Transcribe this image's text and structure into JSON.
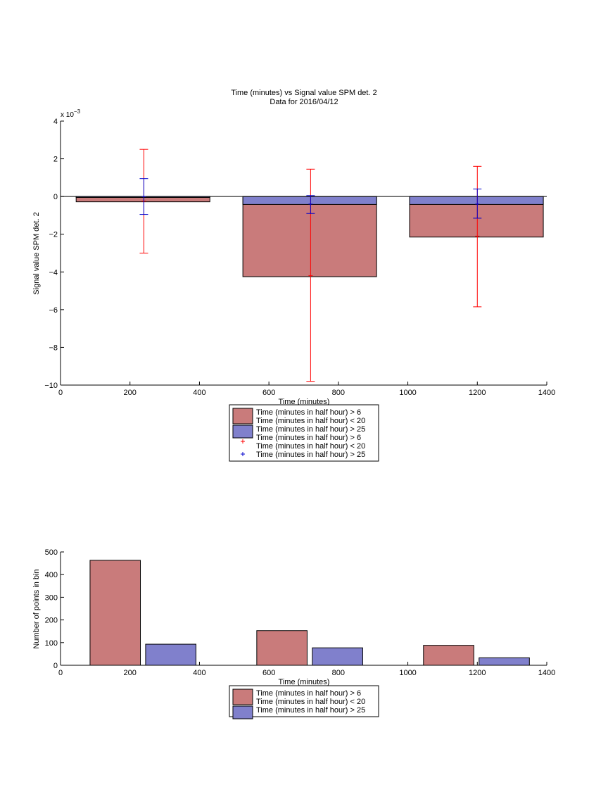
{
  "colors": {
    "bar_red": "#c97b7b",
    "bar_blue": "#8080cc",
    "err_red": "#ff0000",
    "err_blue": "#0000cc",
    "axis": "#000000"
  },
  "chart_data": [
    {
      "type": "bar",
      "title": "Time (minutes) vs Signal value SPM det. 2",
      "subtitle": "Data for 2016/04/12",
      "xlabel": "Time (minutes)",
      "ylabel": "Signal value SPM det. 2",
      "exponent_label": "x 10",
      "exponent_power": "−3",
      "xlim": [
        0,
        1400
      ],
      "ylim": [
        -10,
        4
      ],
      "xticks": [
        0,
        200,
        400,
        600,
        800,
        1000,
        1200,
        1400
      ],
      "yticks": [
        -10,
        -8,
        -6,
        -4,
        -2,
        0,
        2,
        4
      ],
      "xtick_labels": [
        "0",
        "200",
        "400",
        "600",
        "800",
        "1000",
        "1200",
        "1400"
      ],
      "ytick_labels": [
        "−10",
        "−8",
        "−6",
        "−4",
        "−2",
        "0",
        "2",
        "4"
      ],
      "bar_groups": [
        {
          "x_start": 45,
          "x_end": 430,
          "red": -0.28,
          "blue": -0.05
        },
        {
          "x_start": 525,
          "x_end": 910,
          "red": -4.25,
          "blue": -0.42
        },
        {
          "x_start": 1005,
          "x_end": 1390,
          "red": -2.15,
          "blue": -0.42
        }
      ],
      "error_bars": [
        {
          "series": "red",
          "x": 240,
          "y": -0.25,
          "low": -3.0,
          "high": 2.5
        },
        {
          "series": "blue",
          "x": 240,
          "y": 0.0,
          "low": -0.95,
          "high": 0.95
        },
        {
          "series": "red",
          "x": 720,
          "y": -4.2,
          "low": -9.8,
          "high": 1.45
        },
        {
          "series": "blue",
          "x": 720,
          "y": -0.4,
          "low": -0.9,
          "high": 0.05
        },
        {
          "series": "red",
          "x": 1200,
          "y": -2.1,
          "low": -5.85,
          "high": 1.6
        },
        {
          "series": "blue",
          "x": 1200,
          "y": -0.4,
          "low": -1.15,
          "high": 0.4
        }
      ],
      "legend": {
        "placement": "below",
        "entries": [
          {
            "kind": "bar",
            "color": "red",
            "lines": [
              "Time (minutes in half hour) > 6",
              "Time (minutes in half hour) < 20"
            ]
          },
          {
            "kind": "bar",
            "color": "blue",
            "lines": [
              "Time (minutes in half hour) > 25"
            ]
          },
          {
            "kind": "marker",
            "color": "red",
            "lines": [
              "Time (minutes in half hour) > 6",
              "Time (minutes in half hour) < 20"
            ]
          },
          {
            "kind": "marker",
            "color": "blue",
            "lines": [
              "Time (minutes in half hour) > 25"
            ]
          }
        ]
      }
    },
    {
      "type": "bar",
      "title": "",
      "xlabel": "Time (minutes)",
      "ylabel": "Number of points in bin",
      "xlim": [
        0,
        1400
      ],
      "ylim": [
        0,
        500
      ],
      "xticks": [
        0,
        200,
        400,
        600,
        800,
        1000,
        1200,
        1400
      ],
      "yticks": [
        0,
        100,
        200,
        300,
        400,
        500
      ],
      "xtick_labels": [
        "0",
        "200",
        "400",
        "600",
        "800",
        "1000",
        "1200",
        "1400"
      ],
      "ytick_labels": [
        "0",
        "100",
        "200",
        "300",
        "400",
        "500"
      ],
      "bars": [
        {
          "series": "red",
          "x_start": 85,
          "x_end": 230,
          "value": 463
        },
        {
          "series": "blue",
          "x_start": 245,
          "x_end": 390,
          "value": 93
        },
        {
          "series": "red",
          "x_start": 565,
          "x_end": 710,
          "value": 153
        },
        {
          "series": "blue",
          "x_start": 725,
          "x_end": 870,
          "value": 77
        },
        {
          "series": "red",
          "x_start": 1045,
          "x_end": 1190,
          "value": 88
        },
        {
          "series": "blue",
          "x_start": 1205,
          "x_end": 1350,
          "value": 33
        }
      ],
      "legend": {
        "placement": "below",
        "entries": [
          {
            "kind": "bar",
            "color": "red",
            "lines": [
              "Time (minutes in half hour) > 6",
              "Time (minutes in half hour) < 20"
            ]
          },
          {
            "kind": "bar",
            "color": "blue",
            "lines": [
              "Time (minutes in half hour) > 25"
            ]
          }
        ]
      }
    }
  ]
}
